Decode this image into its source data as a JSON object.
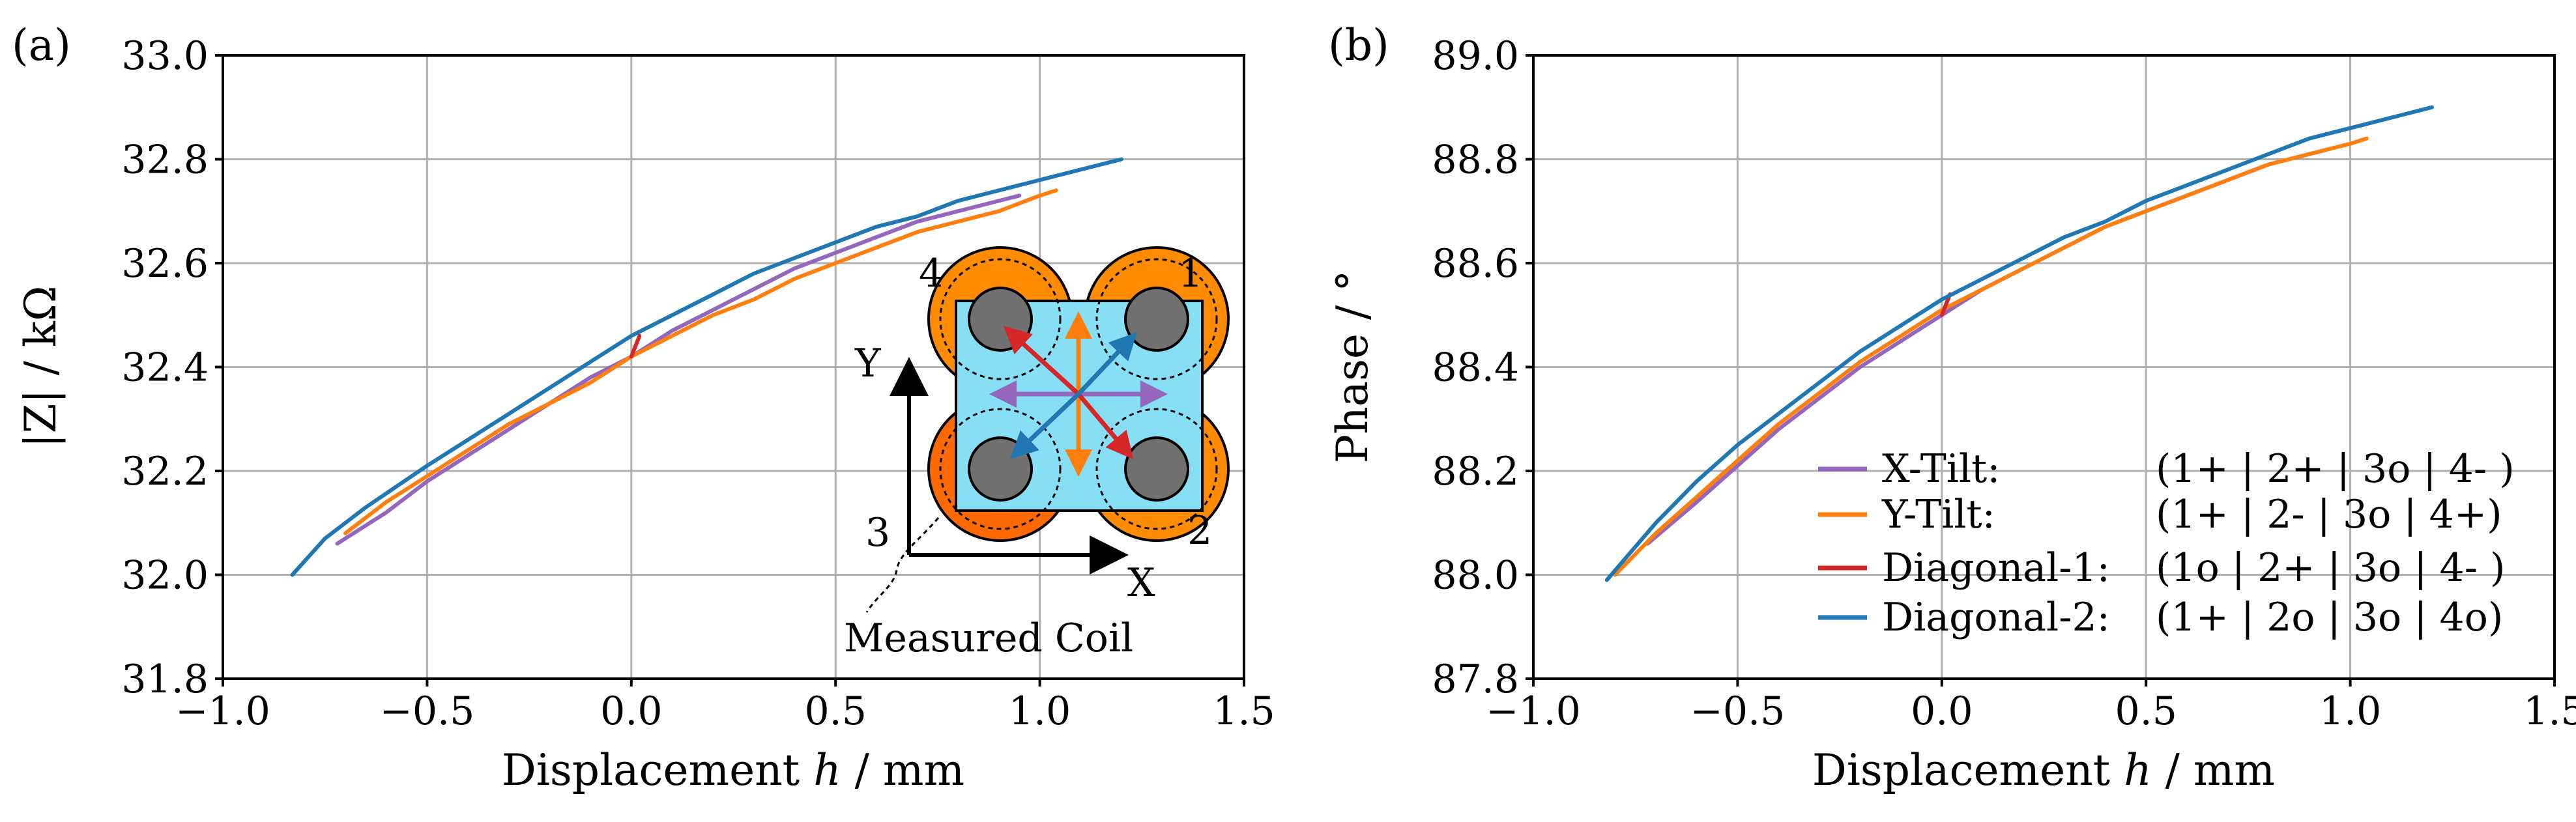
{
  "colors": {
    "x_tilt": "#9467bd",
    "y_tilt": "#ff7f0e",
    "diag1": "#d62728",
    "diag2": "#1f77b4",
    "coil_orange": "#ff8c00",
    "coil_dark_orange": "#ff6a00",
    "board": "#87dff5",
    "core": "#707070",
    "grid": "#b0b0b0"
  },
  "inset": {
    "axis_y": "Y",
    "axis_x": "X",
    "coil_numbers": [
      "1",
      "2",
      "3",
      "4"
    ],
    "measured_coil_label": "Measured Coil"
  },
  "chart_data": [
    {
      "panel": "(a)",
      "type": "line",
      "xlabel_pre": "Displacement ",
      "xlabel_var": "h",
      "xlabel_post": " / mm",
      "ylabel": "|Z| / kΩ",
      "xlim": [
        -1.0,
        1.5
      ],
      "ylim": [
        31.8,
        33.0
      ],
      "xticks": [
        -1.0,
        -0.5,
        0.0,
        0.5,
        1.0,
        1.5
      ],
      "xtick_labels": [
        "−1.0",
        "−0.5",
        "0.0",
        "0.5",
        "1.0",
        "1.5"
      ],
      "yticks": [
        31.8,
        32.0,
        32.2,
        32.4,
        32.6,
        32.8,
        33.0
      ],
      "ytick_labels": [
        "31.8",
        "32.0",
        "32.2",
        "32.4",
        "32.6",
        "32.8",
        "33.0"
      ],
      "grid": true,
      "series": [
        {
          "name": "X-Tilt",
          "color_key": "x_tilt",
          "x": [
            -0.72,
            -0.6,
            -0.5,
            -0.4,
            -0.3,
            -0.2,
            -0.1,
            0.0,
            0.1,
            0.2,
            0.3,
            0.4,
            0.5,
            0.6,
            0.7,
            0.8,
            0.9,
            0.95
          ],
          "y": [
            32.06,
            32.12,
            32.18,
            32.23,
            32.28,
            32.33,
            32.38,
            32.42,
            32.47,
            32.51,
            32.55,
            32.59,
            32.62,
            32.65,
            32.68,
            32.7,
            32.72,
            32.73
          ]
        },
        {
          "name": "Y-Tilt",
          "color_key": "y_tilt",
          "x": [
            -0.7,
            -0.6,
            -0.5,
            -0.4,
            -0.3,
            -0.2,
            -0.1,
            0.0,
            0.1,
            0.2,
            0.3,
            0.4,
            0.5,
            0.6,
            0.7,
            0.8,
            0.9,
            1.0,
            1.04
          ],
          "y": [
            32.08,
            32.14,
            32.19,
            32.24,
            32.29,
            32.33,
            32.37,
            32.42,
            32.46,
            32.5,
            32.53,
            32.57,
            32.6,
            32.63,
            32.66,
            32.68,
            32.7,
            32.73,
            32.74
          ]
        },
        {
          "name": "Diagonal-1",
          "color_key": "diag1",
          "x": [
            0.0,
            0.005,
            0.01,
            0.015,
            0.02
          ],
          "y": [
            32.42,
            32.43,
            32.44,
            32.45,
            32.46
          ]
        },
        {
          "name": "Diagonal-2",
          "color_key": "diag2",
          "x": [
            -0.83,
            -0.75,
            -0.65,
            -0.5,
            -0.4,
            -0.3,
            -0.2,
            -0.1,
            0.0,
            0.1,
            0.2,
            0.3,
            0.4,
            0.5,
            0.6,
            0.7,
            0.8,
            0.9,
            1.0,
            1.1,
            1.2
          ],
          "y": [
            32.0,
            32.07,
            32.13,
            32.21,
            32.26,
            32.31,
            32.36,
            32.41,
            32.46,
            32.5,
            32.54,
            32.58,
            32.61,
            32.64,
            32.67,
            32.69,
            32.72,
            32.74,
            32.76,
            32.78,
            32.8
          ]
        }
      ]
    },
    {
      "panel": "(b)",
      "type": "line",
      "xlabel_pre": "Displacement ",
      "xlabel_var": "h",
      "xlabel_post": " / mm",
      "ylabel": "Phase / °",
      "xlim": [
        -1.0,
        1.5
      ],
      "ylim": [
        87.8,
        89.0
      ],
      "xticks": [
        -1.0,
        -0.5,
        0.0,
        0.5,
        1.0,
        1.5
      ],
      "xtick_labels": [
        "−1.0",
        "−0.5",
        "0.0",
        "0.5",
        "1.0",
        "1.5"
      ],
      "yticks": [
        87.8,
        88.0,
        88.2,
        88.4,
        88.6,
        88.8,
        89.0
      ],
      "ytick_labels": [
        "87.8",
        "88.0",
        "88.2",
        "88.4",
        "88.6",
        "88.8",
        "89.0"
      ],
      "grid": true,
      "legend_location": "lower right",
      "legend": [
        {
          "name": "X-Tilt:",
          "config": "(1+ | 2+ | 3o | 4- )",
          "color_key": "x_tilt"
        },
        {
          "name": "Y-Tilt:",
          "config": "(1+ | 2- | 3o | 4+)",
          "color_key": "y_tilt"
        },
        {
          "name": "Diagonal-1:",
          "config": "(1o | 2+ | 3o | 4- )",
          "color_key": "diag1"
        },
        {
          "name": "Diagonal-2:",
          "config": "(1+ | 2o | 3o | 4o)",
          "color_key": "diag2"
        }
      ],
      "series": [
        {
          "name": "X-Tilt",
          "color_key": "x_tilt",
          "x": [
            -0.72,
            -0.6,
            -0.5,
            -0.4,
            -0.3,
            -0.2,
            -0.1,
            0.0,
            0.1,
            0.2,
            0.3,
            0.4,
            0.5,
            0.6,
            0.7,
            0.8,
            0.9,
            0.95
          ],
          "y": [
            88.06,
            88.14,
            88.21,
            88.28,
            88.34,
            88.4,
            88.45,
            88.5,
            88.55,
            88.59,
            88.63,
            88.67,
            88.7,
            88.73,
            88.76,
            88.79,
            88.81,
            88.82
          ]
        },
        {
          "name": "Y-Tilt",
          "color_key": "y_tilt",
          "x": [
            -0.8,
            -0.7,
            -0.6,
            -0.5,
            -0.4,
            -0.3,
            -0.2,
            -0.1,
            0.0,
            0.1,
            0.2,
            0.3,
            0.4,
            0.5,
            0.6,
            0.7,
            0.8,
            0.9,
            1.0,
            1.04
          ],
          "y": [
            88.0,
            88.08,
            88.15,
            88.22,
            88.29,
            88.35,
            88.41,
            88.46,
            88.51,
            88.55,
            88.59,
            88.63,
            88.67,
            88.7,
            88.73,
            88.76,
            88.79,
            88.81,
            88.83,
            88.84
          ]
        },
        {
          "name": "Diagonal-1",
          "color_key": "diag1",
          "x": [
            0.0,
            0.005,
            0.01,
            0.015,
            0.02
          ],
          "y": [
            88.5,
            88.51,
            88.52,
            88.53,
            88.54
          ]
        },
        {
          "name": "Diagonal-2",
          "color_key": "diag2",
          "x": [
            -0.82,
            -0.7,
            -0.6,
            -0.5,
            -0.4,
            -0.3,
            -0.2,
            -0.1,
            0.0,
            0.1,
            0.2,
            0.3,
            0.4,
            0.5,
            0.6,
            0.7,
            0.8,
            0.9,
            1.0,
            1.1,
            1.2
          ],
          "y": [
            87.99,
            88.1,
            88.18,
            88.25,
            88.31,
            88.37,
            88.43,
            88.48,
            88.53,
            88.57,
            88.61,
            88.65,
            88.68,
            88.72,
            88.75,
            88.78,
            88.81,
            88.84,
            88.86,
            88.88,
            88.9
          ]
        }
      ]
    }
  ]
}
